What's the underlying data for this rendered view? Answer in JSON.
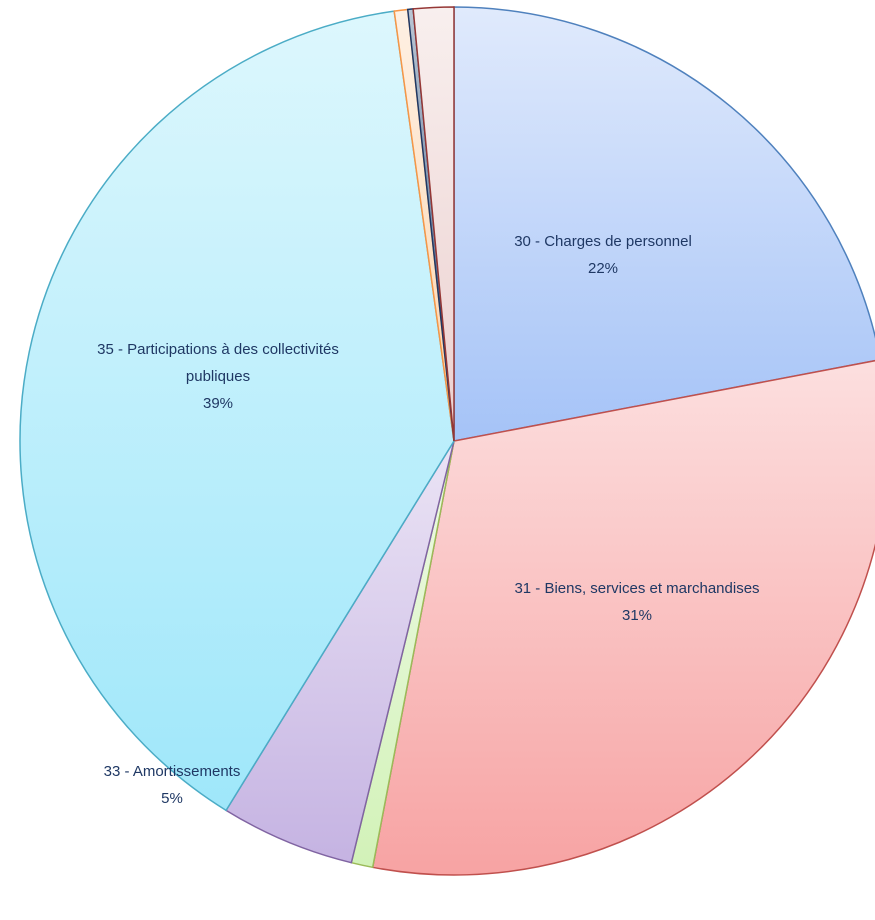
{
  "chart_data": {
    "type": "pie",
    "categories": [
      "30 - Charges de personnel",
      "31 - Biens, services et marchandises",
      null,
      "33 - Amortissements",
      "35 - Participations à des collectivités publiques",
      null,
      null,
      null
    ],
    "values": [
      22,
      31,
      0.8,
      5,
      39,
      0.5,
      0.2,
      1.5
    ],
    "value_labels": [
      "22%",
      "31%",
      null,
      "5%",
      "39%",
      null,
      null,
      null
    ],
    "colors": [
      "#a5c3f7",
      "#f7a3a3",
      "#d2f2b8",
      "#c5b3e2",
      "#9fe7fa",
      "#fcd5ae",
      "#3b5c85",
      "#ecd0cf"
    ],
    "edge_colors": [
      "#4f81bd",
      "#c0504d",
      "#9bbb59",
      "#8064a2",
      "#4bacc6",
      "#f79646",
      "#1f3864",
      "#953735"
    ]
  }
}
